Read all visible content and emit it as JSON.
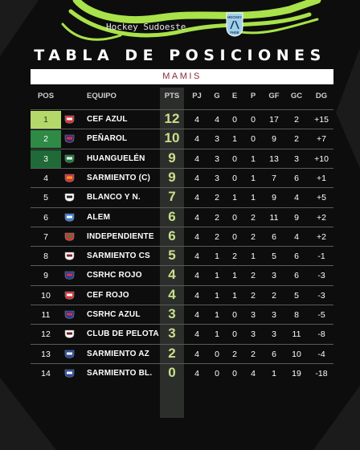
{
  "header": {
    "label": "Hockey Sudoeste",
    "logo_text": [
      "HOCKEY",
      "FHSE"
    ]
  },
  "title": "TABLA DE POSICIONES",
  "subtitle": "MAMIS",
  "columns": [
    "POS",
    "EQUIPO",
    "PTS",
    "PJ",
    "G",
    "E",
    "P",
    "GF",
    "GC",
    "DG"
  ],
  "colors": {
    "green_light": "#b5d86a",
    "green_mid": "#2e8a45",
    "green_dark": "#1f6a37",
    "pts_text": "#c8e08a"
  },
  "rows": [
    {
      "pos": "1",
      "team": "CEF AZUL",
      "icon": "cef-azul-crest-icon",
      "pts": "12",
      "pj": "4",
      "g": "4",
      "e": "0",
      "p": "0",
      "gf": "17",
      "gc": "2",
      "dg": "+15"
    },
    {
      "pos": "2",
      "team": "PEÑAROL",
      "icon": "penarol-crest-icon",
      "pts": "10",
      "pj": "4",
      "g": "3",
      "e": "1",
      "p": "0",
      "gf": "9",
      "gc": "2",
      "dg": "+7"
    },
    {
      "pos": "3",
      "team": "HUANGUELÉN",
      "icon": "huanguelen-crest-icon",
      "pts": "9",
      "pj": "4",
      "g": "3",
      "e": "0",
      "p": "1",
      "gf": "13",
      "gc": "3",
      "dg": "+10"
    },
    {
      "pos": "4",
      "team": "SARMIENTO (C)",
      "icon": "sarmiento-c-crest-icon",
      "pts": "9",
      "pj": "4",
      "g": "3",
      "e": "0",
      "p": "1",
      "gf": "7",
      "gc": "6",
      "dg": "+1"
    },
    {
      "pos": "5",
      "team": "BLANCO Y N.",
      "icon": "blanco-y-negro-crest-icon",
      "pts": "7",
      "pj": "4",
      "g": "2",
      "e": "1",
      "p": "1",
      "gf": "9",
      "gc": "4",
      "dg": "+5"
    },
    {
      "pos": "6",
      "team": "ALEM",
      "icon": "alem-crest-icon",
      "pts": "6",
      "pj": "4",
      "g": "2",
      "e": "0",
      "p": "2",
      "gf": "11",
      "gc": "9",
      "dg": "+2"
    },
    {
      "pos": "7",
      "team": "INDEPENDIENTE",
      "icon": "independiente-crest-icon",
      "pts": "6",
      "pj": "4",
      "g": "2",
      "e": "0",
      "p": "2",
      "gf": "6",
      "gc": "4",
      "dg": "+2"
    },
    {
      "pos": "8",
      "team": "SARMIENTO CS",
      "icon": "sarmiento-cs-crest-icon",
      "pts": "5",
      "pj": "4",
      "g": "1",
      "e": "2",
      "p": "1",
      "gf": "5",
      "gc": "6",
      "dg": "-1"
    },
    {
      "pos": "9",
      "team": "CSRHC ROJO",
      "icon": "csrhc-rojo-crest-icon",
      "pts": "4",
      "pj": "4",
      "g": "1",
      "e": "1",
      "p": "2",
      "gf": "3",
      "gc": "6",
      "dg": "-3"
    },
    {
      "pos": "10",
      "team": "CEF ROJO",
      "icon": "cef-rojo-crest-icon",
      "pts": "4",
      "pj": "4",
      "g": "1",
      "e": "1",
      "p": "2",
      "gf": "2",
      "gc": "5",
      "dg": "-3"
    },
    {
      "pos": "11",
      "team": "CSRHC AZUL",
      "icon": "csrhc-azul-crest-icon",
      "pts": "3",
      "pj": "4",
      "g": "1",
      "e": "0",
      "p": "3",
      "gf": "3",
      "gc": "8",
      "dg": "-5"
    },
    {
      "pos": "12",
      "team": "CLUB DE PELOTA",
      "icon": "club-de-pelota-crest-icon",
      "pts": "3",
      "pj": "4",
      "g": "1",
      "e": "0",
      "p": "3",
      "gf": "3",
      "gc": "11",
      "dg": "-8"
    },
    {
      "pos": "13",
      "team": "SARMIENTO AZ",
      "icon": "sarmiento-az-crest-icon",
      "pts": "2",
      "pj": "4",
      "g": "0",
      "e": "2",
      "p": "2",
      "gf": "6",
      "gc": "10",
      "dg": "-4"
    },
    {
      "pos": "14",
      "team": "SARMIENTO BL.",
      "icon": "sarmiento-bl-crest-icon",
      "pts": "0",
      "pj": "4",
      "g": "0",
      "e": "0",
      "p": "4",
      "gf": "1",
      "gc": "19",
      "dg": "-18"
    }
  ]
}
